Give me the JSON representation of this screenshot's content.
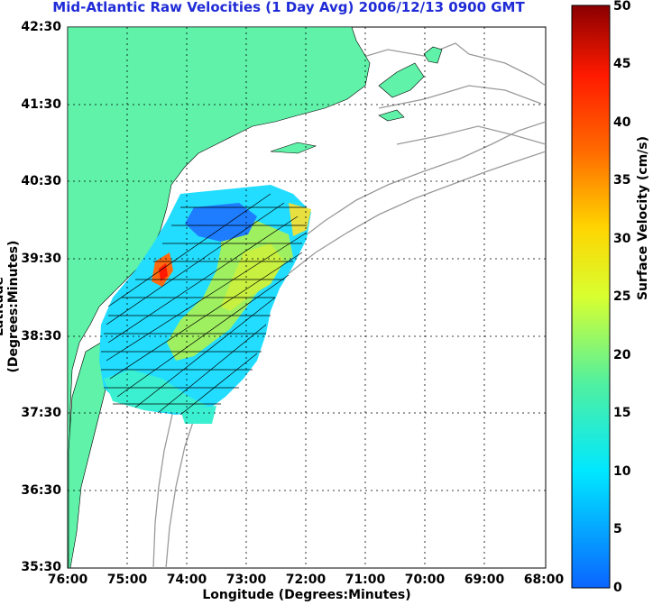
{
  "title": "Mid-Atlantic Raw Velocities (1 Day Avg) 2006/12/13 0900 GMT",
  "axes": {
    "xlabel": "Longitude (Degrees:Minutes)",
    "ylabel": "Latitude (Degrees:Minutes)",
    "xticks": [
      "76:00",
      "75:00",
      "74:00",
      "73:00",
      "72:00",
      "71:00",
      "70:00",
      "69:00",
      "68:00"
    ],
    "yticks": [
      "42:30",
      "41:30",
      "40:30",
      "39:30",
      "38:30",
      "37:30",
      "36:30",
      "35:30"
    ]
  },
  "colorbar": {
    "label": "Surface Velocity (cm/s)",
    "ticks": [
      "50",
      "45",
      "40",
      "35",
      "30",
      "25",
      "20",
      "15",
      "10",
      "5",
      "0"
    ],
    "range": [
      0,
      50
    ]
  },
  "colors": {
    "land": "#5ff2a8",
    "title": "#1f2bd6",
    "bathymetry": "#9a9a9a"
  }
}
